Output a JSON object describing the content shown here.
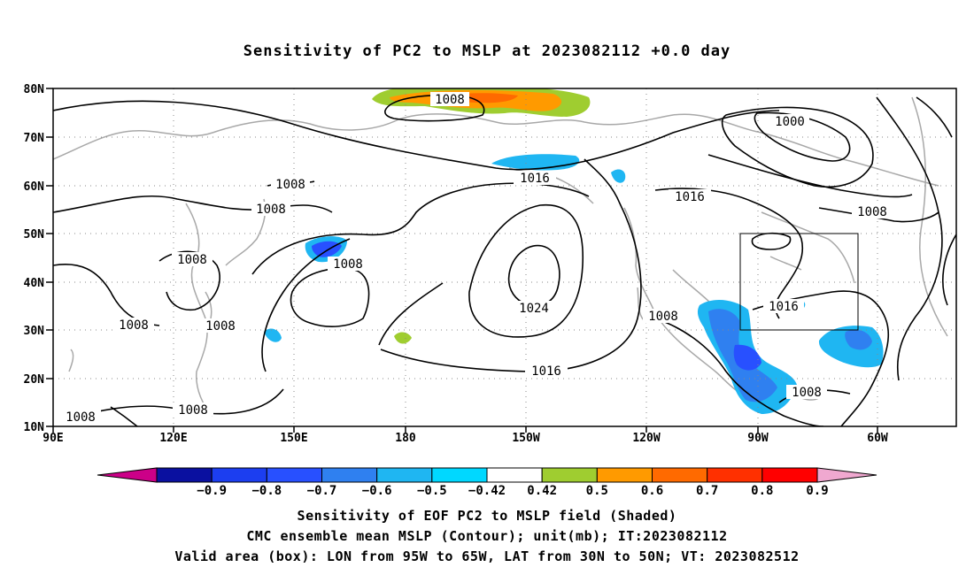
{
  "title": "Sensitivity of PC2 to MSLP at 2023082112 +0.0 day",
  "map": {
    "lon_labels": [
      "90E",
      "120E",
      "150E",
      "180",
      "150W",
      "120W",
      "90W",
      "60W"
    ],
    "lat_labels": [
      "80N",
      "70N",
      "60N",
      "50N",
      "40N",
      "30N",
      "20N",
      "10N"
    ],
    "contour_unit": "mb",
    "contour_labels": [
      "1008",
      "1000",
      "1016",
      "1008",
      "1008",
      "1016",
      "1008",
      "1008",
      "1008",
      "1024",
      "1008",
      "1016",
      "1016",
      "1008",
      "1008",
      "1008"
    ],
    "valid_box": {
      "lon_from": "95W",
      "lon_to": "65W",
      "lat_from": "30N",
      "lat_to": "50N"
    }
  },
  "colorbar": {
    "labels": [
      "−0.9",
      "−0.8",
      "−0.7",
      "−0.6",
      "−0.5",
      "−0.42",
      "0.42",
      "0.5",
      "0.6",
      "0.7",
      "0.8",
      "0.9"
    ],
    "colors": [
      "#cc0088",
      "#0a10a0",
      "#1c3ef0",
      "#2850ff",
      "#2f80f0",
      "#1fb6f2",
      "#00d8ff",
      "#ffffff",
      "#9fcd30",
      "#ff9a00",
      "#ff6a00",
      "#ff3000",
      "#ff0000",
      "#f0a8d0"
    ]
  },
  "captions": {
    "line1": "Sensitivity of EOF PC2 to MSLP field (Shaded)",
    "line2": "CMC ensemble mean MSLP (Contour); unit(mb); IT:2023082112",
    "line3": "Valid area (box): LON from 95W to 65W, LAT from 30N to 50N; VT: 2023082512"
  }
}
